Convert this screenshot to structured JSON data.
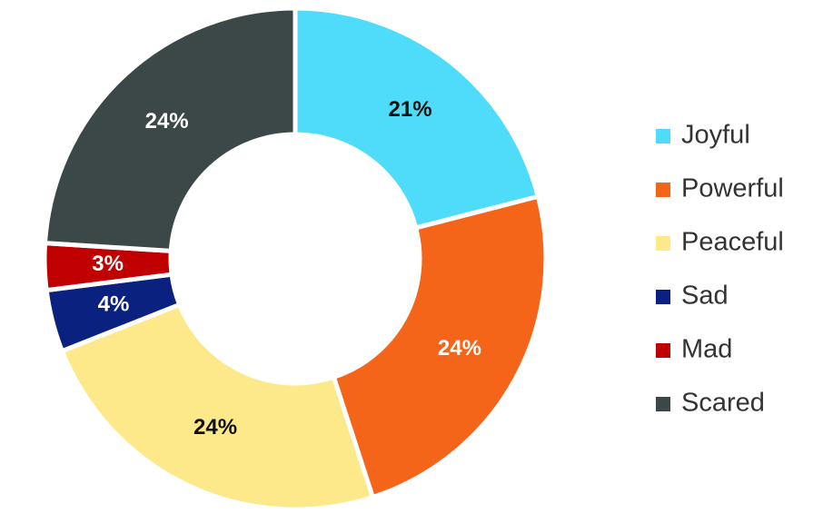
{
  "chart_data": {
    "type": "donut",
    "categories": [
      "Joyful",
      "Powerful",
      "Peaceful",
      "Sad",
      "Mad",
      "Scared"
    ],
    "values": [
      21,
      24,
      24,
      4,
      3,
      24
    ],
    "value_labels": [
      "21%",
      "24%",
      "24%",
      "4%",
      "3%",
      "24%"
    ],
    "colors": [
      "#4fdcfb",
      "#f46419",
      "#fde88a",
      "#0b2180",
      "#c00000",
      "#3c4747"
    ],
    "legend": "right"
  }
}
